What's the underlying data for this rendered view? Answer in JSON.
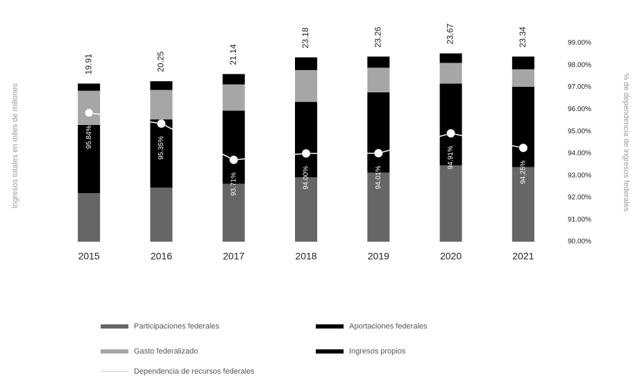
{
  "chart_data": {
    "type": "bar",
    "stacked": true,
    "y_label": "Ingresos totales en miles de millones",
    "y2_label": "% de dependencia de ingresos federales",
    "categories": [
      "2015",
      "2016",
      "2017",
      "2018",
      "2019",
      "2020",
      "2021"
    ],
    "totals": [
      19.91,
      20.25,
      21.14,
      23.18,
      23.26,
      23.67,
      23.34
    ],
    "series": [
      {
        "name": "Participaciones federales",
        "color": "#666666",
        "values": [
          6.1,
          6.8,
          7.3,
          8.1,
          8.7,
          9.6,
          9.4
        ]
      },
      {
        "name": "Aportaciones federales",
        "color": "#000000",
        "values": [
          8.6,
          8.6,
          9.2,
          9.5,
          10.1,
          10.3,
          10.1
        ]
      },
      {
        "name": "Gasto federalizado",
        "color": "#a6a6a6",
        "values": [
          4.3,
          3.7,
          3.3,
          4.0,
          3.1,
          2.6,
          2.2
        ]
      },
      {
        "name": "Ingresos propios",
        "color": "#000000",
        "values": [
          0.9,
          1.1,
          1.3,
          1.6,
          1.4,
          1.2,
          1.6
        ]
      },
      {
        "name": "Dependencia de recursos federales",
        "color": "#ffffff",
        "type": "line",
        "axis": "y2",
        "values": [
          95.84,
          95.35,
          93.71,
          94.0,
          94.01,
          94.91,
          94.25
        ],
        "value_labels": [
          "95.84%",
          "95.35%",
          "93.71%",
          "94.00%",
          "94.01%",
          "94.91%",
          "94.25%"
        ]
      }
    ],
    "ylim": [
      0,
      25
    ],
    "y2lim": [
      90,
      99
    ],
    "y2ticks": [
      {
        "value": 90,
        "label": "90.00%"
      },
      {
        "value": 91,
        "label": "91.00%"
      },
      {
        "value": 92,
        "label": "92.00%"
      },
      {
        "value": 93,
        "label": "93.00%"
      },
      {
        "value": 94,
        "label": "94.00%"
      },
      {
        "value": 95,
        "label": "95.00%"
      },
      {
        "value": 96,
        "label": "96.00%"
      },
      {
        "value": 97,
        "label": "97.00%"
      },
      {
        "value": 98,
        "label": "98.00%"
      },
      {
        "value": 99,
        "label": "99.00%"
      }
    ]
  }
}
